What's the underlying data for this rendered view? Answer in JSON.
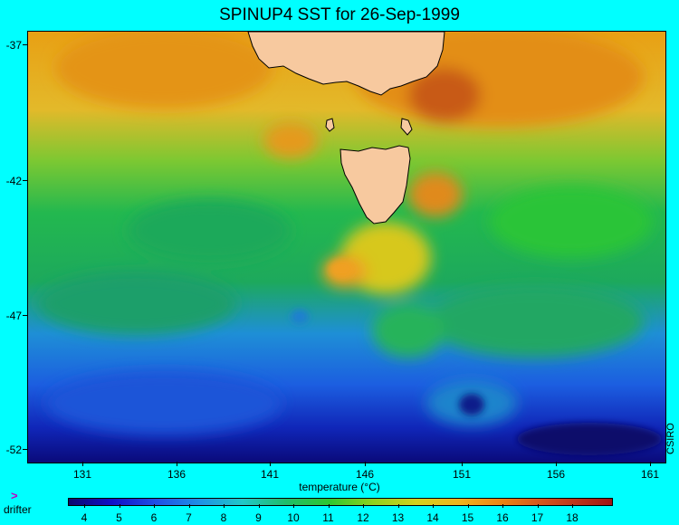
{
  "title": "SPINUP4 SST for 26-Sep-1999",
  "map": {
    "lat_ticks": [
      "-37",
      "-42",
      "-47",
      "-52"
    ],
    "lon_ticks": [
      "131",
      "136",
      "141",
      "146",
      "151",
      "156",
      "161"
    ],
    "land_color": "#f7c99f"
  },
  "xlabel": "temperature (°C)",
  "credit": "CSIRO",
  "legend": {
    "drifter_marker": ">",
    "drifter_label": "drifter"
  },
  "colorbar": {
    "labels": [
      "4",
      "5",
      "6",
      "7",
      "8",
      "9",
      "10",
      "11",
      "12",
      "13",
      "14",
      "15",
      "16",
      "17",
      "18"
    ]
  }
}
